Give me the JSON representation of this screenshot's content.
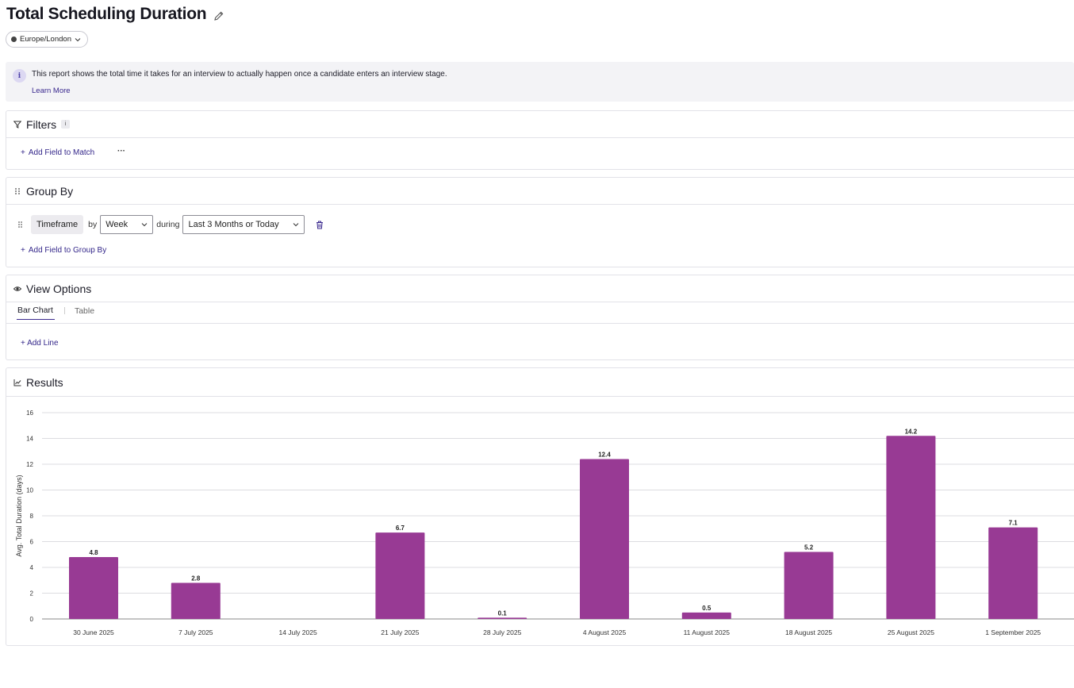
{
  "header": {
    "title": "Total Scheduling Duration",
    "timezone": "Europe/London"
  },
  "info": {
    "text": "This report shows the total time it takes for an interview to actually happen once a candidate enters an interview stage.",
    "link": "Learn More",
    "icon": "i"
  },
  "filters": {
    "title": "Filters",
    "info_badge": "i",
    "add_label": "Add Field to Match",
    "more_label": "···"
  },
  "group_by": {
    "title": "Group By",
    "field": "Timeframe",
    "by_word": "by",
    "interval": "Week",
    "during_word": "during",
    "range": "Last 3 Months or Today",
    "add_label": "Add Field to Group By"
  },
  "view_options": {
    "title": "View Options",
    "tabs": [
      "Bar Chart",
      "Table"
    ],
    "active_tab": "Bar Chart",
    "add_line_label": "+ Add Line"
  },
  "results": {
    "title": "Results"
  },
  "chart_data": {
    "type": "bar",
    "categories": [
      "30 June 2025",
      "7 July 2025",
      "14 July 2025",
      "21 July 2025",
      "28 July 2025",
      "4 August 2025",
      "11 August 2025",
      "18 August 2025",
      "25 August 2025",
      "1 September 2025"
    ],
    "values": [
      4.8,
      2.8,
      0,
      6.7,
      0.1,
      12.4,
      0.5,
      5.2,
      14.2,
      7.1
    ],
    "data_labels": [
      "4.8",
      "2.8",
      "",
      "6.7",
      "0.1",
      "12.4",
      "0.5",
      "5.2",
      "14.2",
      "7.1"
    ],
    "ylabel": "Avg. Total Duration (days)",
    "ylim": [
      0,
      16
    ],
    "yticks": [
      0,
      2,
      4,
      6,
      8,
      10,
      12,
      14,
      16
    ],
    "grid": true,
    "bar_color": "#983a94"
  },
  "colors": {
    "accent": "#3b2a8f",
    "bar": "#983a94",
    "info_bg": "#f3f3f6"
  }
}
